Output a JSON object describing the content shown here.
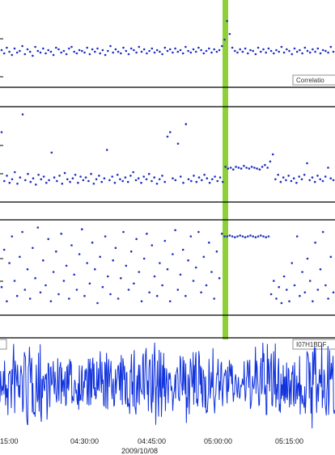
{
  "colors": {
    "marker": "#1f2fbf",
    "waveform": "#1133dd",
    "event_band": "#8ecf3a",
    "axis": "#000000",
    "label_box_border": "#777777"
  },
  "panel_labels": {
    "correlation": "Correlatio",
    "station": "I07H1BDF"
  },
  "x_axis": {
    "date": "2009/10/08",
    "tick_labels": [
      "15:00",
      "04:30:00",
      "04:45:00",
      "05:00:00",
      "05:15:00"
    ]
  },
  "chart_data": [
    {
      "type": "scatter",
      "series": [
        {
          "values": [
            0.42,
            0.38,
            0.45,
            0.4,
            0.36,
            0.44,
            0.39,
            0.41,
            0.47,
            0.37,
            0.43,
            0.4,
            0.35,
            0.46,
            0.41,
            0.39,
            0.44,
            0.38,
            0.42,
            0.4,
            0.36,
            0.45,
            0.43,
            0.39,
            0.41,
            0.37,
            0.44,
            0.46,
            0.4,
            0.38,
            0.42,
            0.41,
            0.39,
            0.45,
            0.37,
            0.43,
            0.4,
            0.44,
            0.38,
            0.42,
            0.36,
            0.41,
            0.47,
            0.39,
            0.43,
            0.4,
            0.38,
            0.45,
            0.41,
            0.37,
            0.44,
            0.42,
            0.39,
            0.46,
            0.4,
            0.43,
            0.38,
            0.41,
            0.44,
            0.39,
            0.42,
            0.4,
            0.37,
            0.45,
            0.41,
            0.43,
            0.39,
            0.44,
            0.4,
            0.42,
            0.38,
            0.46,
            0.41,
            0.39,
            0.43,
            0.4,
            0.45,
            0.42,
            0.38,
            0.41,
            0.44,
            0.39,
            0.43,
            0.4,
            0.42,
            0.47,
            0.55,
            0.78,
            0.62,
            0.45,
            0.41,
            0.39,
            0.43,
            0.4,
            0.44,
            0.38,
            0.42,
            0.41,
            0.37,
            0.45,
            0.4,
            0.43,
            0.39,
            0.44,
            0.41,
            0.38,
            0.42,
            0.4,
            0.46,
            0.39,
            0.43,
            0.41,
            0.37,
            0.44,
            0.4,
            0.42,
            0.38,
            0.45,
            0.41,
            0.39,
            0.43,
            0.4,
            0.44,
            0.38,
            0.42,
            0.41,
            0.39,
            0.46,
            0.4
          ]
        }
      ]
    },
    {
      "type": "scatter",
      "series": [
        {
          "values": [
            0.75,
            0.2,
            0.26,
            0.18,
            0.22,
            0.3,
            0.17,
            0.24,
            0.95,
            0.21,
            0.28,
            0.19,
            0.23,
            0.16,
            0.27,
            0.22,
            0.25,
            0.18,
            0.21,
            0.52,
            0.24,
            0.2,
            0.26,
            0.17,
            0.29,
            0.22,
            0.19,
            0.23,
            0.27,
            0.18,
            0.25,
            0.21,
            0.24,
            0.2,
            0.28,
            0.17,
            0.22,
            0.26,
            0.19,
            0.23,
            0.55,
            0.21,
            0.25,
            0.18,
            0.27,
            0.22,
            0.2,
            0.24,
            0.19,
            0.26,
            0.3,
            0.21,
            0.23,
            0.18,
            0.25,
            0.22,
            0.28,
            0.2,
            0.24,
            0.17,
            0.22,
            0.26,
            0.19,
            0.7,
            0.75,
            0.23,
            0.21,
            0.62,
            0.25,
            0.18,
            0.84,
            0.22,
            0.2,
            0.26,
            0.19,
            0.24,
            0.21,
            0.27,
            0.23,
            0.18,
            0.22,
            0.25,
            0.2,
            0.24,
            0.19,
            0.36,
            0.34,
            0.35,
            0.33,
            0.36,
            0.35,
            0.34,
            0.37,
            0.35,
            0.34,
            0.36,
            0.35,
            0.34,
            0.33,
            0.36,
            0.38,
            0.35,
            0.42,
            0.5,
            0.22,
            0.27,
            0.19,
            0.24,
            0.21,
            0.26,
            0.2,
            0.23,
            0.18,
            0.25,
            0.22,
            0.27,
            0.4,
            0.21,
            0.24,
            0.19,
            0.26,
            0.22,
            0.2,
            0.25,
            0.35,
            0.23,
            0.21
          ]
        }
      ]
    },
    {
      "type": "scatter",
      "series": [
        {
          "values": [
            0.28,
            0.7,
            0.12,
            0.55,
            0.85,
            0.35,
            0.18,
            0.62,
            0.9,
            0.25,
            0.48,
            0.15,
            0.72,
            0.38,
            0.95,
            0.22,
            0.58,
            0.3,
            0.82,
            0.12,
            0.45,
            0.68,
            0.2,
            0.88,
            0.35,
            0.52,
            0.15,
            0.75,
            0.42,
            0.25,
            0.65,
            0.93,
            0.18,
            0.55,
            0.32,
            0.78,
            0.48,
            0.1,
            0.62,
            0.28,
            0.85,
            0.4,
            0.2,
            0.58,
            0.72,
            0.15,
            0.38,
            0.9,
            0.52,
            0.25,
            0.68,
            0.32,
            0.82,
            0.45,
            0.12,
            0.6,
            0.88,
            0.22,
            0.75,
            0.4,
            0.18,
            0.55,
            0.3,
            0.8,
            0.48,
            0.12,
            0.65,
            0.92,
            0.25,
            0.42,
            0.7,
            0.18,
            0.58,
            0.85,
            0.35,
            0.5,
            0.9,
            0.22,
            0.62,
            0.3,
            0.78,
            0.45,
            0.15,
            0.68,
            0.38,
            0.88,
            0.85,
            0.85,
            0.86,
            0.85,
            0.84,
            0.85,
            0.86,
            0.85,
            0.84,
            0.85,
            0.86,
            0.85,
            0.84,
            0.85,
            0.86,
            0.85,
            0.84,
            0.85,
            0.2,
            0.35,
            0.15,
            0.28,
            0.1,
            0.4,
            0.25,
            0.12,
            0.55,
            0.3,
            0.85,
            0.18,
            0.45,
            0.22,
            0.6,
            0.35,
            0.12,
            0.78,
            0.25,
            0.48,
            0.9,
            0.3,
            0.15,
            0.62,
            0.22
          ]
        }
      ]
    }
  ]
}
